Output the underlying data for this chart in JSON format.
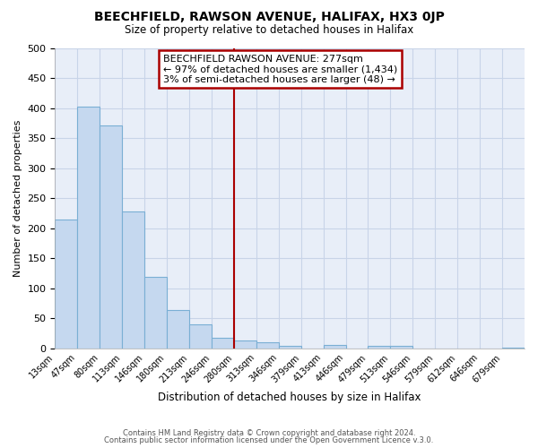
{
  "title": "BEECHFIELD, RAWSON AVENUE, HALIFAX, HX3 0JP",
  "subtitle": "Size of property relative to detached houses in Halifax",
  "xlabel": "Distribution of detached houses by size in Halifax",
  "ylabel": "Number of detached properties",
  "bar_color": "#c5d8ef",
  "bar_edge_color": "#7aafd4",
  "bin_labels": [
    "13sqm",
    "47sqm",
    "80sqm",
    "113sqm",
    "146sqm",
    "180sqm",
    "213sqm",
    "246sqm",
    "280sqm",
    "313sqm",
    "346sqm",
    "379sqm",
    "413sqm",
    "446sqm",
    "479sqm",
    "513sqm",
    "546sqm",
    "579sqm",
    "612sqm",
    "646sqm",
    "679sqm"
  ],
  "bar_heights": [
    215,
    403,
    372,
    228,
    119,
    64,
    40,
    18,
    14,
    11,
    5,
    0,
    6,
    0,
    5,
    4,
    0,
    0,
    0,
    0,
    2
  ],
  "ylim": [
    0,
    500
  ],
  "yticks": [
    0,
    50,
    100,
    150,
    200,
    250,
    300,
    350,
    400,
    450,
    500
  ],
  "vline_bin_index": 8,
  "vline_color": "#aa0000",
  "annotation_title": "BEECHFIELD RAWSON AVENUE: 277sqm",
  "annotation_line1": "← 97% of detached houses are smaller (1,434)",
  "annotation_line2": "3% of semi-detached houses are larger (48) →",
  "annotation_box_color": "#ffffff",
  "annotation_box_edge": "#aa0000",
  "grid_color": "#c8d4e8",
  "plot_bg_color": "#e8eef8",
  "fig_bg_color": "#ffffff",
  "footer1": "Contains HM Land Registry data © Crown copyright and database right 2024.",
  "footer2": "Contains public sector information licensed under the Open Government Licence v.3.0."
}
